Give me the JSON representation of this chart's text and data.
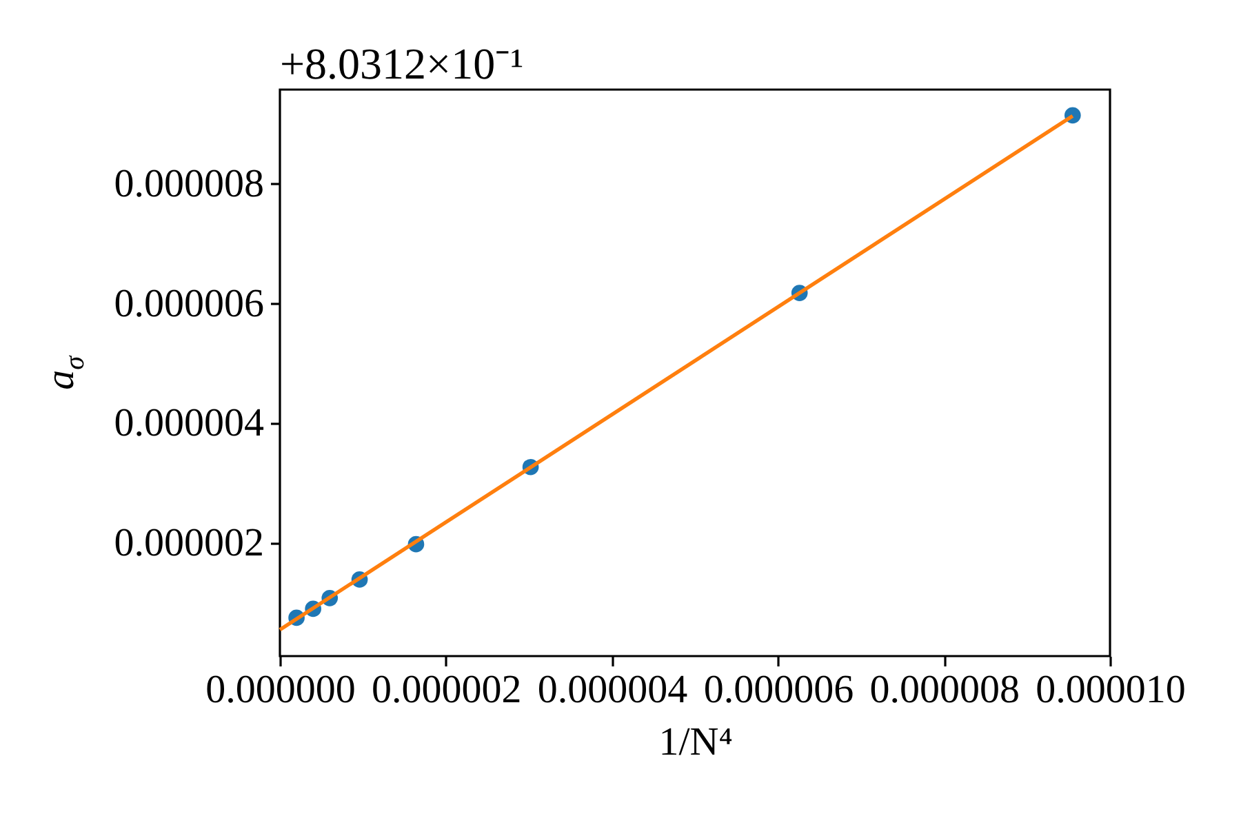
{
  "chart_data": {
    "type": "scatter",
    "xlabel": "1/N⁴",
    "ylabel": "a$_{σ}$",
    "annotations": [
      "+8.0312×10⁻¹"
    ],
    "xlim": [
      0,
      1e-05
    ],
    "ylim": [
      1e-07,
      9.57e-06
    ],
    "xticks": [
      {
        "value": 0,
        "label": "0.000000"
      },
      {
        "value": 2e-06,
        "label": "0.000002"
      },
      {
        "value": 4e-06,
        "label": "0.000004"
      },
      {
        "value": 6e-06,
        "label": "0.000006"
      },
      {
        "value": 8e-06,
        "label": "0.000008"
      },
      {
        "value": 1e-05,
        "label": "0.000010"
      }
    ],
    "yticks": [
      {
        "value": 2e-06,
        "label": "0.000002"
      },
      {
        "value": 4e-06,
        "label": "0.000004"
      },
      {
        "value": 6e-06,
        "label": "0.000006"
      },
      {
        "value": 8e-06,
        "label": "0.000008"
      }
    ],
    "series": [
      {
        "type": "scatter",
        "marker": "circle",
        "color": "#1f77b4",
        "x": [
          2e-07,
          4e-07,
          6e-07,
          9.6e-07,
          1.64e-06,
          3.02e-06,
          6.26e-06,
          9.55e-06
        ],
        "values": [
          7.4e-07,
          8.9e-07,
          1.07e-06,
          1.38e-06,
          1.97e-06,
          3.26e-06,
          6.17e-06,
          9.14e-06
        ]
      },
      {
        "type": "line",
        "line_style": "solid",
        "color": "#ff7f0e",
        "x": [
          0,
          9.55e-06
        ],
        "values": [
          5.4e-07,
          9.13e-06
        ]
      }
    ]
  }
}
